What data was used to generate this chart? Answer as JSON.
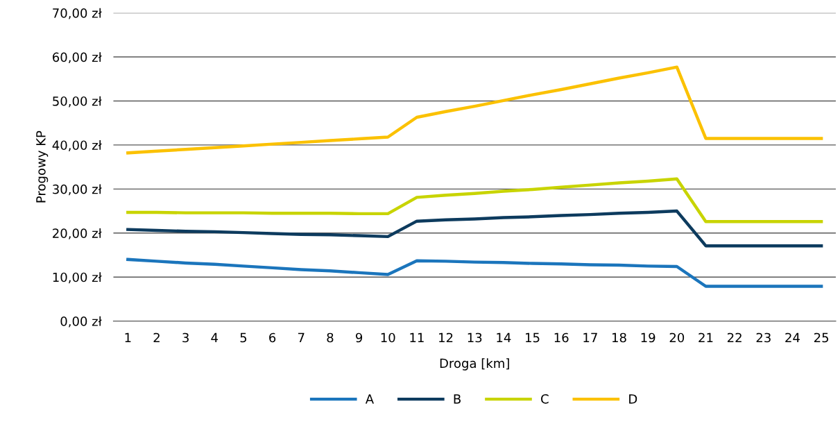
{
  "chart_data": {
    "type": "line",
    "xlabel": "Droga [km]",
    "ylabel": "Progowy KP",
    "categories": [
      "1",
      "2",
      "3",
      "4",
      "5",
      "6",
      "7",
      "8",
      "9",
      "10",
      "11",
      "12",
      "13",
      "14",
      "15",
      "16",
      "17",
      "18",
      "19",
      "20",
      "21",
      "22",
      "23",
      "24",
      "25"
    ],
    "series": [
      {
        "name": "A",
        "color": "#1b75bc",
        "values": [
          14.0,
          13.6,
          13.2,
          12.9,
          12.5,
          12.1,
          11.7,
          11.4,
          11.0,
          10.6,
          13.7,
          13.6,
          13.4,
          13.3,
          13.1,
          13.0,
          12.8,
          12.7,
          12.5,
          12.4,
          7.9,
          7.9,
          7.9,
          7.9,
          7.9
        ]
      },
      {
        "name": "B",
        "color": "#0d3b5e",
        "values": [
          20.8,
          20.6,
          20.4,
          20.3,
          20.1,
          19.9,
          19.7,
          19.6,
          19.4,
          19.2,
          22.7,
          23.0,
          23.2,
          23.5,
          23.7,
          24.0,
          24.2,
          24.5,
          24.7,
          25.0,
          17.1,
          17.1,
          17.1,
          17.1,
          17.1
        ]
      },
      {
        "name": "C",
        "color": "#c8d400",
        "values": [
          24.7,
          24.7,
          24.6,
          24.6,
          24.6,
          24.5,
          24.5,
          24.5,
          24.4,
          24.4,
          28.1,
          28.6,
          29.0,
          29.5,
          29.9,
          30.4,
          30.9,
          31.4,
          31.8,
          32.3,
          22.6,
          22.6,
          22.6,
          22.6,
          22.6
        ]
      },
      {
        "name": "D",
        "color": "#fbc100",
        "values": [
          38.2,
          38.6,
          39.0,
          39.4,
          39.8,
          40.2,
          40.6,
          41.0,
          41.4,
          41.8,
          46.3,
          47.6,
          48.8,
          50.1,
          51.4,
          52.6,
          53.9,
          55.2,
          56.4,
          57.7,
          41.5,
          41.5,
          41.5,
          41.5,
          41.5
        ]
      }
    ],
    "ylim": [
      0,
      70
    ],
    "yticks": [
      {
        "value": 0,
        "label": "0,00 zł"
      },
      {
        "value": 10,
        "label": "10,00 zł"
      },
      {
        "value": 20,
        "label": "20,00 zł"
      },
      {
        "value": 30,
        "label": "30,00 zł"
      },
      {
        "value": 40,
        "label": "40,00 zł"
      },
      {
        "value": 50,
        "label": "50,00 zł"
      },
      {
        "value": 60,
        "label": "60,00 zł"
      },
      {
        "value": 70,
        "label": "70,00 zł"
      }
    ],
    "grid": "y",
    "legend": "bottom",
    "marker": "none",
    "line_style": "solid"
  }
}
